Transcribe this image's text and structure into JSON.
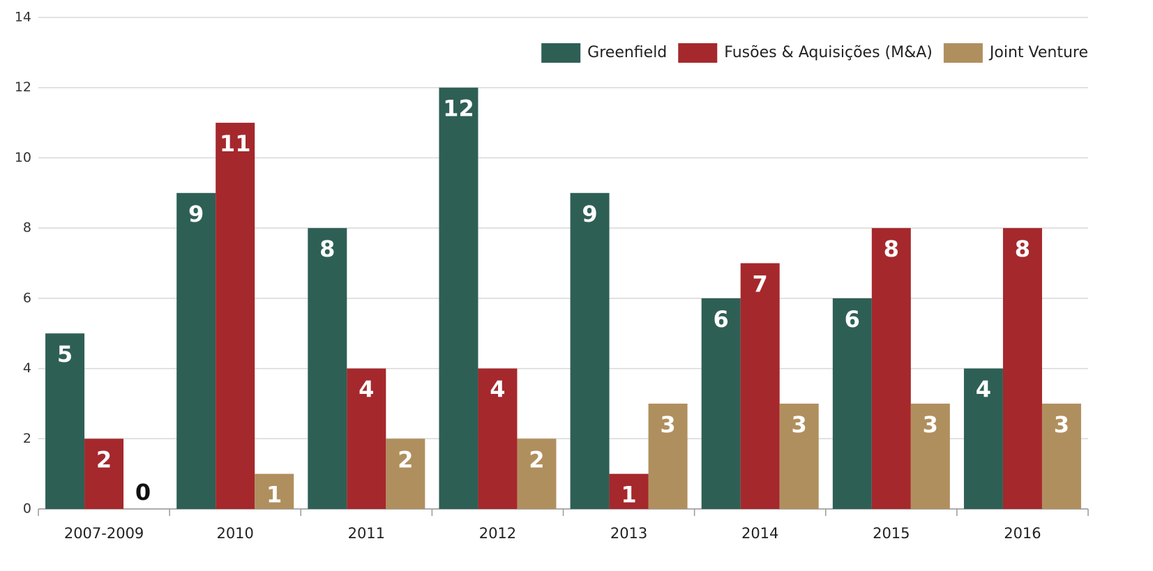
{
  "chart_data": {
    "type": "bar",
    "categories": [
      "2007-2009",
      "2010",
      "2011",
      "2012",
      "2013",
      "2014",
      "2015",
      "2016"
    ],
    "series": [
      {
        "name": "Greenfield",
        "color": "#2e5f55",
        "values": [
          5,
          9,
          8,
          12,
          9,
          6,
          6,
          4
        ]
      },
      {
        "name": "Fusões & Aquisições (M&A)",
        "color": "#a5282c",
        "values": [
          2,
          11,
          4,
          4,
          1,
          7,
          8,
          8
        ]
      },
      {
        "name": "Joint Venture",
        "color": "#b08f5e",
        "values": [
          0,
          1,
          2,
          2,
          3,
          3,
          3,
          3
        ]
      }
    ],
    "ylim": [
      0,
      14
    ],
    "yticks": [
      0,
      2,
      4,
      6,
      8,
      10,
      12,
      14
    ],
    "grid": true,
    "legend": "upper right"
  }
}
